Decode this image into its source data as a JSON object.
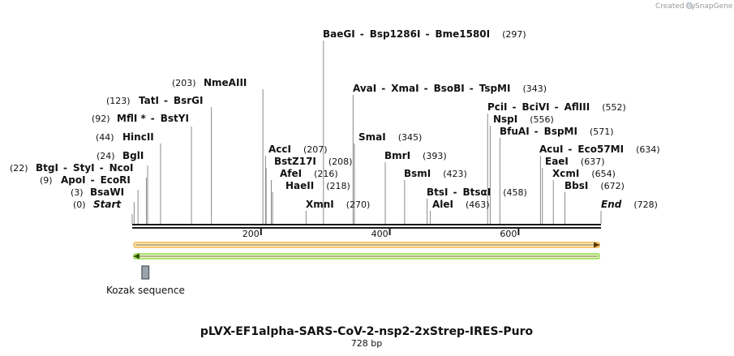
{
  "credit": {
    "text": "Created by",
    "brand": "SnapGene"
  },
  "title": "pLVX-EF1alpha-SARS-CoV-2-nsp2-2xStrep-IRES-Puro",
  "subtitle": "728 bp",
  "sequence": {
    "start": 0,
    "end": 728
  },
  "ticks": [
    {
      "value": 200,
      "label": "200"
    },
    {
      "value": 400,
      "label": "400"
    },
    {
      "value": 600,
      "label": "600"
    }
  ],
  "feature": {
    "name": "Kozak sequence",
    "start": 15,
    "end": 26,
    "color": "#9aa3ad"
  },
  "arrows": [
    {
      "direction": "forward",
      "color": "#f5a623",
      "fill": "#fff4cf"
    },
    {
      "direction": "reverse",
      "color": "#7ed321",
      "fill": "#eafbd3"
    }
  ],
  "sites": [
    {
      "group": [
        {
          "name": "Start",
          "italic": true
        }
      ],
      "pos": [
        0
      ],
      "pos_label": "(0)"
    },
    {
      "group": [
        {
          "name": "BsaWI"
        }
      ],
      "pos": [
        3
      ],
      "pos_label": "(3)"
    },
    {
      "group": [
        {
          "name": "ApoI"
        },
        {
          "name": "EcoRI"
        }
      ],
      "pos": [
        9
      ],
      "pos_label": "(9)"
    },
    {
      "group": [
        {
          "name": "BtgI"
        },
        {
          "name": "StyI"
        },
        {
          "name": "NcoI"
        }
      ],
      "pos": [
        22
      ],
      "pos_label": "(22)"
    },
    {
      "group": [
        {
          "name": "BglI"
        }
      ],
      "pos": [
        24
      ],
      "pos_label": "(24)"
    },
    {
      "group": [
        {
          "name": "HincII"
        }
      ],
      "pos": [
        44
      ],
      "pos_label": "(44)"
    },
    {
      "group": [
        {
          "name": "MflI *"
        },
        {
          "name": "BstYI"
        }
      ],
      "pos": [
        92
      ],
      "pos_label": "(92)"
    },
    {
      "group": [
        {
          "name": "TatI"
        },
        {
          "name": "BsrGI"
        }
      ],
      "pos": [
        123
      ],
      "pos_label": "(123)"
    },
    {
      "group": [
        {
          "name": "NmeAIII"
        }
      ],
      "pos": [
        203
      ],
      "pos_label": "(203)",
      "label_side": "right"
    },
    {
      "group": [
        {
          "name": "AccI"
        }
      ],
      "pos": [
        207
      ],
      "pos_label": "(207)"
    },
    {
      "group": [
        {
          "name": "BstZ17I"
        }
      ],
      "pos": [
        208
      ],
      "pos_label": "(208)"
    },
    {
      "group": [
        {
          "name": "AfeI"
        }
      ],
      "pos": [
        216
      ],
      "pos_label": "(216)"
    },
    {
      "group": [
        {
          "name": "HaeII"
        }
      ],
      "pos": [
        218
      ],
      "pos_label": "(218)"
    },
    {
      "group": [
        {
          "name": "XmnI"
        }
      ],
      "pos": [
        270
      ],
      "pos_label": "(270)"
    },
    {
      "group": [
        {
          "name": "BaeGI"
        },
        {
          "name": "Bsp1286I"
        },
        {
          "name": "Bme1580I"
        }
      ],
      "pos": [
        297
      ],
      "pos_label": "(297)"
    },
    {
      "group": [
        {
          "name": "AvaI"
        },
        {
          "name": "XmaI"
        },
        {
          "name": "BsoBI"
        },
        {
          "name": "TspMI"
        }
      ],
      "pos": [
        343
      ],
      "pos_label": "(343)"
    },
    {
      "group": [
        {
          "name": "SmaI"
        }
      ],
      "pos": [
        345
      ],
      "pos_label": "(345)"
    },
    {
      "group": [
        {
          "name": "BmrI"
        }
      ],
      "pos": [
        393
      ],
      "pos_label": "(393)"
    },
    {
      "group": [
        {
          "name": "BsmI"
        }
      ],
      "pos": [
        423
      ],
      "pos_label": "(423)"
    },
    {
      "group": [
        {
          "name": "BtsI"
        },
        {
          "name": "BtsαI"
        }
      ],
      "pos": [
        458
      ],
      "pos_label": "(458)"
    },
    {
      "group": [
        {
          "name": "AleI"
        }
      ],
      "pos": [
        463
      ],
      "pos_label": "(463)"
    },
    {
      "group": [
        {
          "name": "PciI"
        },
        {
          "name": "BciVI"
        },
        {
          "name": "AflIII"
        }
      ],
      "pos": [
        552
      ],
      "pos_label": "(552)"
    },
    {
      "group": [
        {
          "name": "NspI"
        }
      ],
      "pos": [
        556
      ],
      "pos_label": "(556)"
    },
    {
      "group": [
        {
          "name": "BfuAI"
        },
        {
          "name": "BspMI"
        }
      ],
      "pos": [
        571
      ],
      "pos_label": "(571)"
    },
    {
      "group": [
        {
          "name": "AcuI"
        },
        {
          "name": "Eco57MI"
        }
      ],
      "pos": [
        634
      ],
      "pos_label": "(634)"
    },
    {
      "group": [
        {
          "name": "EaeI"
        }
      ],
      "pos": [
        637
      ],
      "pos_label": "(637)"
    },
    {
      "group": [
        {
          "name": "XcmI"
        }
      ],
      "pos": [
        654
      ],
      "pos_label": "(654)"
    },
    {
      "group": [
        {
          "name": "BbsI"
        }
      ],
      "pos": [
        672
      ],
      "pos_label": "(672)"
    },
    {
      "group": [
        {
          "name": "End",
          "italic": true
        }
      ],
      "pos": [
        728
      ],
      "pos_label": "(728)"
    }
  ]
}
